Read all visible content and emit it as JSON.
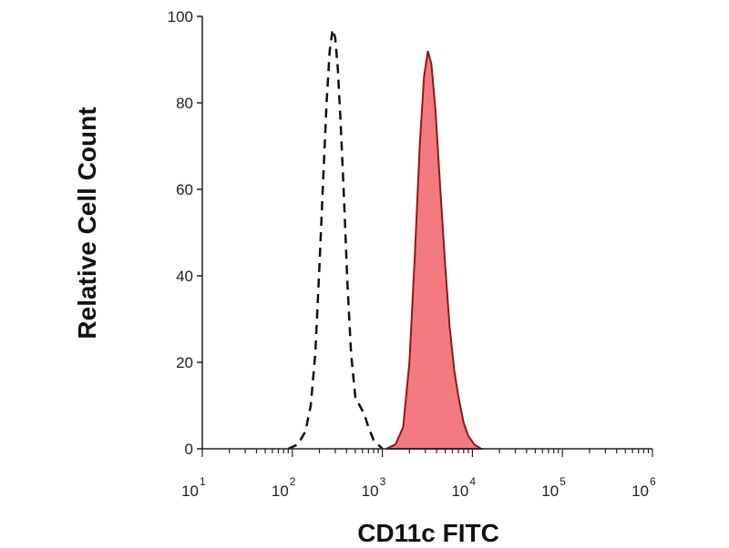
{
  "chart_data": {
    "type": "area",
    "xlabel": "CD11c FITC",
    "ylabel": "Relative Cell Count",
    "x_scale": "log",
    "xlim": [
      10,
      1000000
    ],
    "ylim": [
      0,
      100
    ],
    "x_ticks": [
      {
        "base": "10",
        "exp": "1",
        "value": 10
      },
      {
        "base": "10",
        "exp": "2",
        "value": 100
      },
      {
        "base": "10",
        "exp": "3",
        "value": 1000
      },
      {
        "base": "10",
        "exp": "4",
        "value": 10000
      },
      {
        "base": "10",
        "exp": "5",
        "value": 100000
      },
      {
        "base": "10",
        "exp": "6",
        "value": 1000000
      }
    ],
    "y_ticks": [
      "0",
      "20",
      "40",
      "60",
      "80",
      "100"
    ],
    "series": [
      {
        "style": "dashed",
        "color": "#111111",
        "points": [
          [
            90,
            0
          ],
          [
            115,
            1
          ],
          [
            140,
            4
          ],
          [
            160,
            10
          ],
          [
            180,
            22
          ],
          [
            200,
            42
          ],
          [
            220,
            62
          ],
          [
            240,
            80
          ],
          [
            260,
            92
          ],
          [
            280,
            97
          ],
          [
            300,
            95
          ],
          [
            320,
            88
          ],
          [
            345,
            75
          ],
          [
            375,
            58
          ],
          [
            410,
            38
          ],
          [
            450,
            22
          ],
          [
            500,
            12
          ],
          [
            560,
            10
          ],
          [
            630,
            8
          ],
          [
            700,
            5
          ],
          [
            800,
            2
          ],
          [
            1000,
            0
          ]
        ]
      },
      {
        "style": "filled",
        "color": "#f47a80",
        "stroke": "#8b1a1a",
        "points": [
          [
            1100,
            0
          ],
          [
            1400,
            1
          ],
          [
            1700,
            5
          ],
          [
            2000,
            20
          ],
          [
            2300,
            45
          ],
          [
            2600,
            70
          ],
          [
            2900,
            86
          ],
          [
            3200,
            92
          ],
          [
            3500,
            89
          ],
          [
            3900,
            78
          ],
          [
            4400,
            60
          ],
          [
            5000,
            42
          ],
          [
            5600,
            28
          ],
          [
            6300,
            18
          ],
          [
            7000,
            12
          ],
          [
            8000,
            6
          ],
          [
            9000,
            3
          ],
          [
            10500,
            1
          ],
          [
            12500,
            0
          ]
        ]
      }
    ]
  }
}
